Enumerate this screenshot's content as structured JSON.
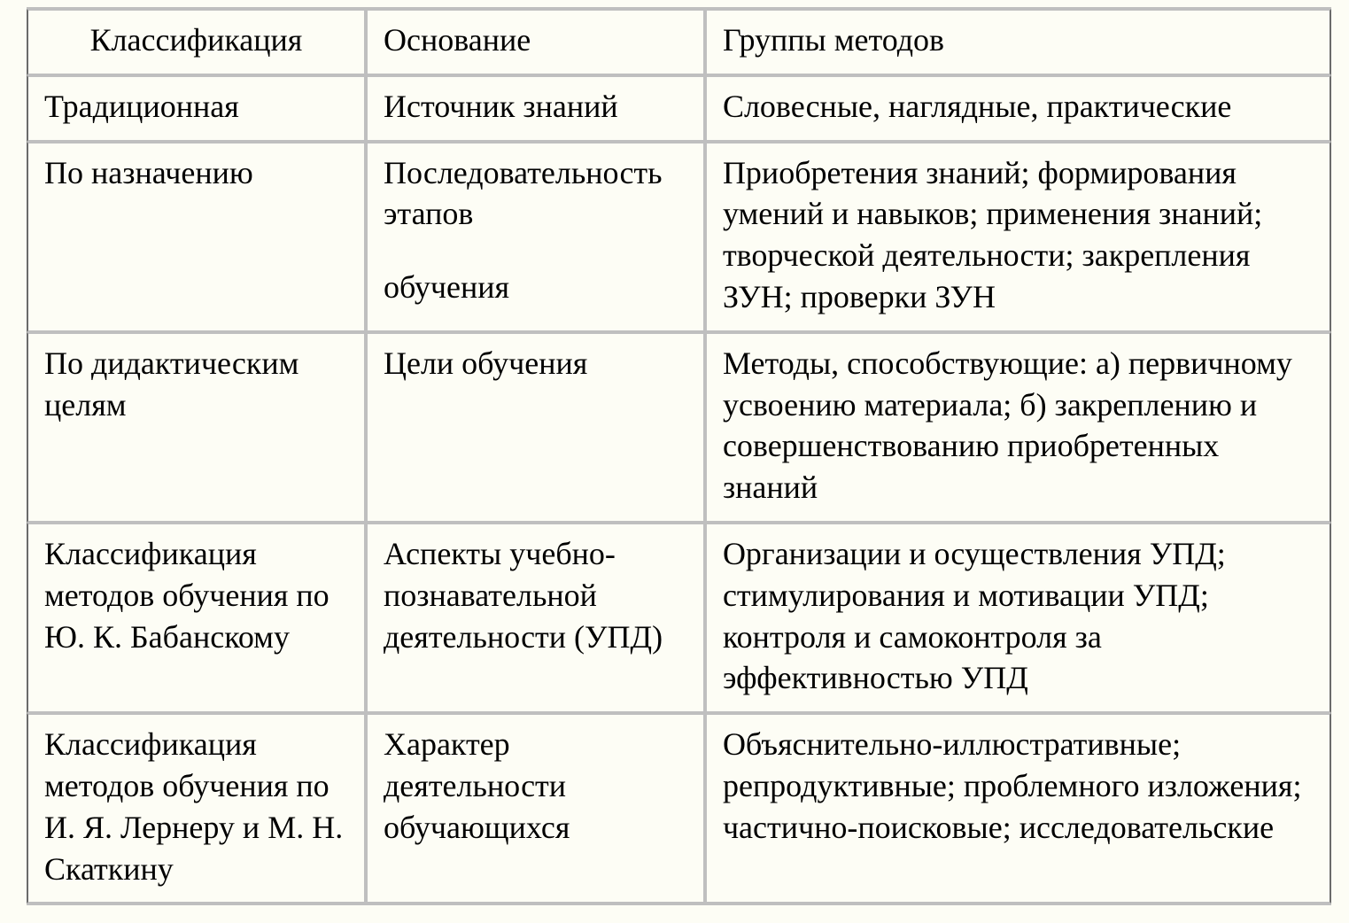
{
  "table": {
    "type": "table",
    "background_color": "#fdfdf5",
    "text_color": "#000000",
    "border_color_outer": "#6b6b6b",
    "border_color_inner": "#bfbfbf",
    "font_family": "Times New Roman",
    "font_size_pt": 27,
    "columns": [
      {
        "key": "classification",
        "label": "Классификация",
        "width_pct": 26,
        "header_align": "center"
      },
      {
        "key": "basis",
        "label": "Основание",
        "width_pct": 26,
        "header_align": "left"
      },
      {
        "key": "groups",
        "label": "Группы методов",
        "width_pct": 48,
        "header_align": "left"
      }
    ],
    "rows": [
      {
        "classification": "Традиционная",
        "basis": "Источник знаний",
        "groups": "Словесные, наглядные, практические"
      },
      {
        "classification": "По назначению",
        "basis_line1": "Последовательность этапов",
        "basis_line2": "обучения",
        "groups": "Приобретения знаний; формирования умений и навыков; применения знаний; творческой деятельности; закрепления ЗУН; проверки ЗУН"
      },
      {
        "classification": "По дидактическим целям",
        "basis": "Цели обучения",
        "groups": "Методы, способствующие: а) первичному усвоению материала; б) закреплению и совершенствованию приобретенных знаний"
      },
      {
        "classification": "Классификация методов обучения по Ю. К. Бабанскому",
        "basis": "Аспекты учебно-познавательной деятельности (УПД)",
        "groups": "Организации и осуществления УПД; стимулирования и мотивации УПД; контроля и самоконтроля за эффективностью УПД"
      },
      {
        "classification": "Классификация методов обучения по И. Я. Лернеру и М. Н. Скаткину",
        "basis": "Характер деятельности обучающихся",
        "groups": "Объяснительно-иллюстративные; репродуктивные; проблемного изложения; частично-поисковые; исследовательские"
      }
    ]
  }
}
